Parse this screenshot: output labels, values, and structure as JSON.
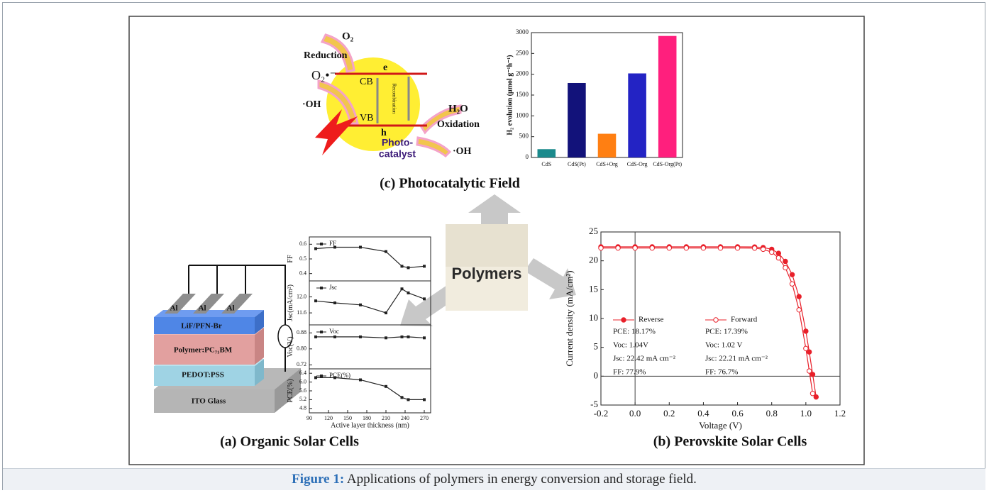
{
  "figure": {
    "photocatalysis": {
      "o2": "O₂",
      "reduction": "Reduction",
      "superoxide": "O₂•⁻",
      "oh_left": "·OH",
      "cb": "CB",
      "vb": "VB",
      "e": "e",
      "h": "h",
      "h2o": "H₂O",
      "oxidation": "Oxidation",
      "oh_right": "·OH",
      "catalyst_1": "Photo-",
      "catalyst_2": "catalyst",
      "recombination": "Recombination"
    },
    "device": {
      "al": [
        "Al",
        "Al",
        "Al"
      ],
      "layers": [
        "LiF/PFN-Br",
        "Polymer:PC₇₁BM",
        "PEDOT:PSS",
        "ITO Glass"
      ]
    },
    "center": "Polymers",
    "panel_labels": [
      "(c)  Photocatalytic Field",
      "(a)  Organic Solar Cells",
      "(b)  Perovskite Solar Cells"
    ]
  },
  "chart_data": [
    {
      "type": "bar",
      "ylabel": "H₂ evolution (μmol g⁻¹h⁻¹)",
      "categories": [
        "CdS",
        "CdS(Pt)",
        "CdS+Org",
        "CdS-Org",
        "CdS-Org(Pt)"
      ],
      "values": [
        200,
        1790,
        570,
        2020,
        2920
      ],
      "colors": [
        "#1b8a8c",
        "#12127a",
        "#ff7f12",
        "#2323c4",
        "#ff1f7d"
      ],
      "ylim": [
        0,
        3000
      ],
      "yticks": [
        0,
        500,
        1000,
        1500,
        2000,
        2500,
        3000
      ]
    },
    {
      "type": "line",
      "ylabel": "FF",
      "x": [
        100,
        130,
        170,
        210,
        235,
        245,
        270
      ],
      "xlim": [
        90,
        280
      ],
      "series": [
        {
          "name": "FF",
          "color": "#222",
          "values": [
            0.57,
            0.58,
            0.58,
            0.55,
            0.45,
            0.44,
            0.45
          ]
        }
      ],
      "ylim": [
        0.35,
        0.65
      ],
      "yticks": [
        0.4,
        0.5,
        0.6
      ]
    },
    {
      "type": "line",
      "ylabel": "Jsc(mA/cm²)",
      "x": [
        100,
        130,
        170,
        210,
        235,
        245,
        270
      ],
      "xlim": [
        90,
        280
      ],
      "series": [
        {
          "name": "Jsc",
          "color": "#222",
          "values": [
            11.9,
            11.85,
            11.8,
            11.6,
            12.2,
            12.1,
            11.95
          ]
        }
      ],
      "ylim": [
        11.3,
        12.4
      ],
      "yticks": [
        11.6,
        {
          "value": 12,
          "label": "12.0"
        }
      ]
    },
    {
      "type": "line",
      "ylabel": "Voc(V)",
      "x": [
        100,
        130,
        170,
        210,
        235,
        245,
        270
      ],
      "xlim": [
        90,
        280
      ],
      "series": [
        {
          "name": "Voc",
          "color": "#222",
          "values": [
            0.86,
            0.86,
            0.86,
            0.855,
            0.86,
            0.86,
            0.855
          ]
        }
      ],
      "ylim": [
        0.7,
        0.92
      ],
      "yticks": [
        0.72,
        {
          "value": 0.8,
          "label": "0.80"
        },
        0.88
      ]
    },
    {
      "type": "line",
      "ylabel": "PCE(%)",
      "xlabel": "Active layer thickness (nm)",
      "x": [
        100,
        130,
        170,
        210,
        235,
        245,
        270
      ],
      "xlim": [
        90,
        280
      ],
      "xticks": [
        90,
        120,
        150,
        180,
        210,
        240,
        270
      ],
      "series": [
        {
          "name": "PCE(%)",
          "color": "#222",
          "values": [
            6.2,
            6.2,
            6.1,
            5.8,
            5.3,
            5.2,
            5.2
          ]
        }
      ],
      "ylim": [
        4.6,
        6.6
      ],
      "yticks": [
        4.8,
        5.2,
        5.6,
        {
          "value": 6,
          "label": "6.0"
        },
        6.4
      ]
    },
    {
      "type": "line",
      "xlabel": "Voltage (V)",
      "ylabel": "Current density (mA/cm²)",
      "zero_lines": true,
      "x": [
        -0.2,
        -0.1,
        0,
        0.1,
        0.2,
        0.3,
        0.4,
        0.5,
        0.6,
        0.7,
        0.75,
        0.8,
        0.84,
        0.88,
        0.92,
        0.96,
        1.0,
        1.02,
        1.04,
        1.06
      ],
      "xlim": [
        -0.2,
        1.2
      ],
      "xticks": [
        -0.2,
        {
          "value": 0,
          "label": "0.0"
        },
        0.2,
        0.4,
        0.6,
        0.8,
        {
          "value": 1,
          "label": "1.0"
        },
        1.2
      ],
      "ylim": [
        -5,
        25
      ],
      "yticks": [
        -5,
        0,
        5,
        10,
        15,
        20,
        25
      ],
      "series": [
        {
          "name": "Reverse",
          "color": "#e8202a",
          "filled": true,
          "stats": [
            "PCE: 18.17%",
            "Voc: 1.04V",
            "Jsc: 22.42 mA cm⁻²",
            "FF: 77.9%"
          ],
          "values": [
            22.42,
            22.42,
            22.42,
            22.42,
            22.42,
            22.42,
            22.42,
            22.42,
            22.42,
            22.4,
            22.3,
            22.0,
            21.3,
            19.9,
            17.6,
            13.8,
            7.8,
            4.2,
            0.3,
            -3.6
          ]
        },
        {
          "name": "Forward",
          "color": "#e8202a",
          "filled": false,
          "stats": [
            "PCE: 17.39%",
            "Voc: 1.02 V",
            "Jsc: 22.21 mA cm⁻²",
            "FF: 76.7%"
          ],
          "values": [
            22.21,
            22.21,
            22.21,
            22.21,
            22.21,
            22.21,
            22.21,
            22.21,
            22.21,
            22.2,
            22.0,
            21.5,
            20.5,
            18.8,
            16.0,
            11.5,
            4.8,
            0.9,
            -3.0,
            null
          ]
        }
      ]
    }
  ],
  "caption": {
    "label": "Figure 1:",
    "text": "Applications of polymers in energy conversion and storage field."
  }
}
